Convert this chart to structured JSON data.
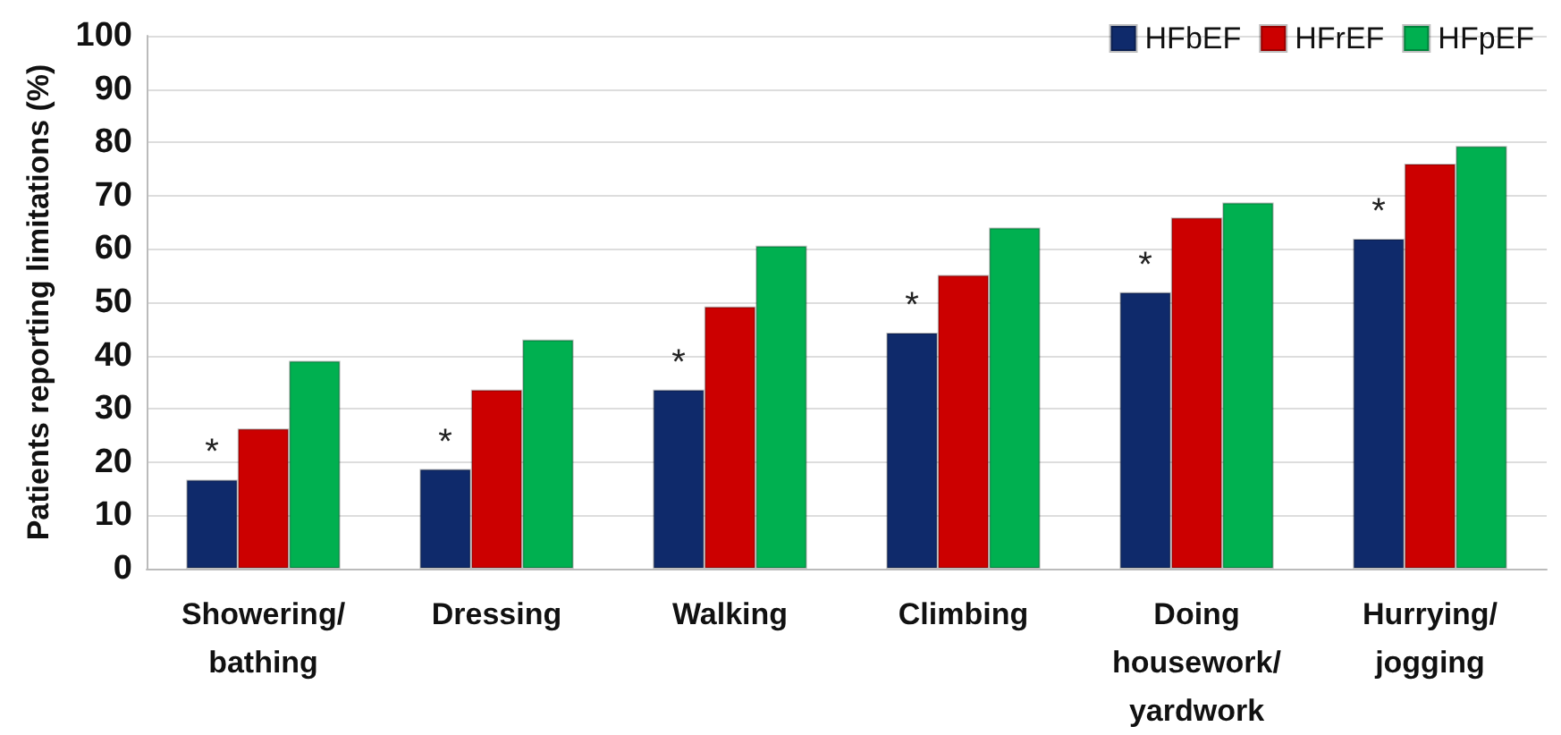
{
  "chart_data": {
    "type": "bar",
    "ylabel": "Patients reporting limitations (%)",
    "categories": [
      "Showering/\nbathing",
      "Dressing",
      "Walking",
      "Climbing",
      "Doing\nhousework/\nyardwork",
      "Hurrying/\njogging"
    ],
    "series": [
      {
        "name": "HFbEF",
        "color": "#0f2a6b",
        "values": [
          16.7,
          18.7,
          33.6,
          44.3,
          51.9,
          61.9
        ],
        "value_labels": [
          "*",
          "*",
          "*",
          "*",
          "*",
          "*"
        ]
      },
      {
        "name": "HFrEF",
        "color": "#cc0000",
        "values": [
          26.3,
          33.6,
          49.2,
          55.1,
          65.9,
          76
        ]
      },
      {
        "name": "HFpEF",
        "color": "#00b050",
        "values": [
          39,
          43,
          60.6,
          64,
          68.7,
          79.3
        ]
      }
    ],
    "ylim": [
      0,
      100
    ],
    "yticks": [
      0,
      10,
      20,
      30,
      40,
      50,
      60,
      70,
      80,
      90,
      100
    ],
    "grid": "y",
    "legend": "top right"
  }
}
